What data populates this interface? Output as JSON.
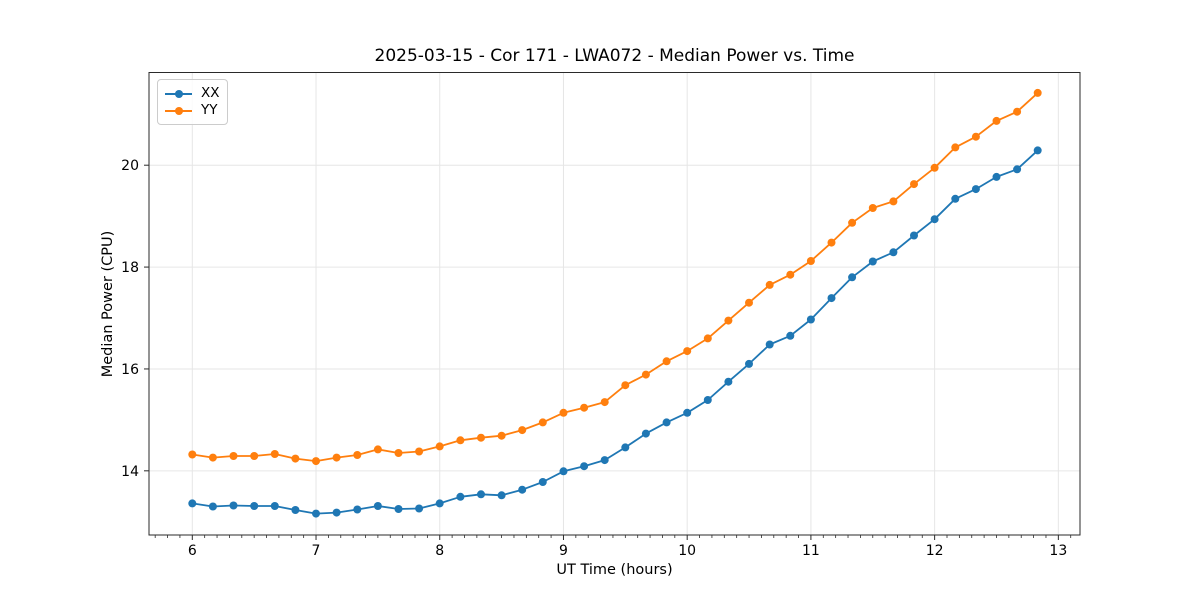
{
  "chart_data": {
    "type": "line",
    "title": "2025-03-15 - Cor 171 - LWA072 - Median Power vs. Time",
    "xlabel": "UT Time (hours)",
    "ylabel": "Median Power (CPU)",
    "xlim": [
      5.65,
      13.175
    ],
    "ylim": [
      12.74,
      21.82
    ],
    "xticks": [
      6,
      7,
      8,
      9,
      10,
      11,
      12,
      13
    ],
    "yticks": [
      14,
      16,
      18,
      20
    ],
    "minor_xtick_step": 0.1,
    "grid": true,
    "grid_color": "#e6e6e6",
    "spine_color": "#2a2a2a",
    "legend_position": "upper-left",
    "x": [
      6.0,
      6.1667,
      6.3333,
      6.5,
      6.6667,
      6.8333,
      7.0,
      7.1667,
      7.3333,
      7.5,
      7.6667,
      7.8333,
      8.0,
      8.1667,
      8.3333,
      8.5,
      8.6667,
      8.8333,
      9.0,
      9.1667,
      9.3333,
      9.5,
      9.6667,
      9.8333,
      10.0,
      10.1667,
      10.3333,
      10.5,
      10.6667,
      10.8333,
      11.0,
      11.1667,
      11.3333,
      11.5,
      11.6667,
      11.8333,
      12.0,
      12.1667,
      12.3333,
      12.5,
      12.6667,
      12.8333
    ],
    "series": [
      {
        "name": "XX",
        "color": "#1f77b4",
        "values": [
          13.36,
          13.3,
          13.32,
          13.31,
          13.31,
          13.23,
          13.16,
          13.18,
          13.24,
          13.31,
          13.25,
          13.26,
          13.36,
          13.49,
          13.54,
          13.52,
          13.63,
          13.78,
          13.99,
          14.09,
          14.21,
          14.46,
          14.73,
          14.95,
          15.14,
          15.39,
          15.75,
          16.1,
          16.48,
          16.65,
          16.97,
          17.39,
          17.8,
          18.11,
          18.29,
          18.62,
          18.94,
          19.34,
          19.53,
          19.77,
          19.92,
          20.29
        ]
      },
      {
        "name": "YY",
        "color": "#ff7f0e",
        "values": [
          14.32,
          14.26,
          14.29,
          14.29,
          14.33,
          14.24,
          14.19,
          14.26,
          14.31,
          14.42,
          14.35,
          14.38,
          14.48,
          14.6,
          14.65,
          14.69,
          14.8,
          14.95,
          15.14,
          15.24,
          15.35,
          15.68,
          15.89,
          16.15,
          16.35,
          16.6,
          16.95,
          17.3,
          17.65,
          17.85,
          18.12,
          18.48,
          18.87,
          19.16,
          19.29,
          19.63,
          19.95,
          20.35,
          20.56,
          20.87,
          21.05,
          21.42
        ]
      }
    ]
  }
}
